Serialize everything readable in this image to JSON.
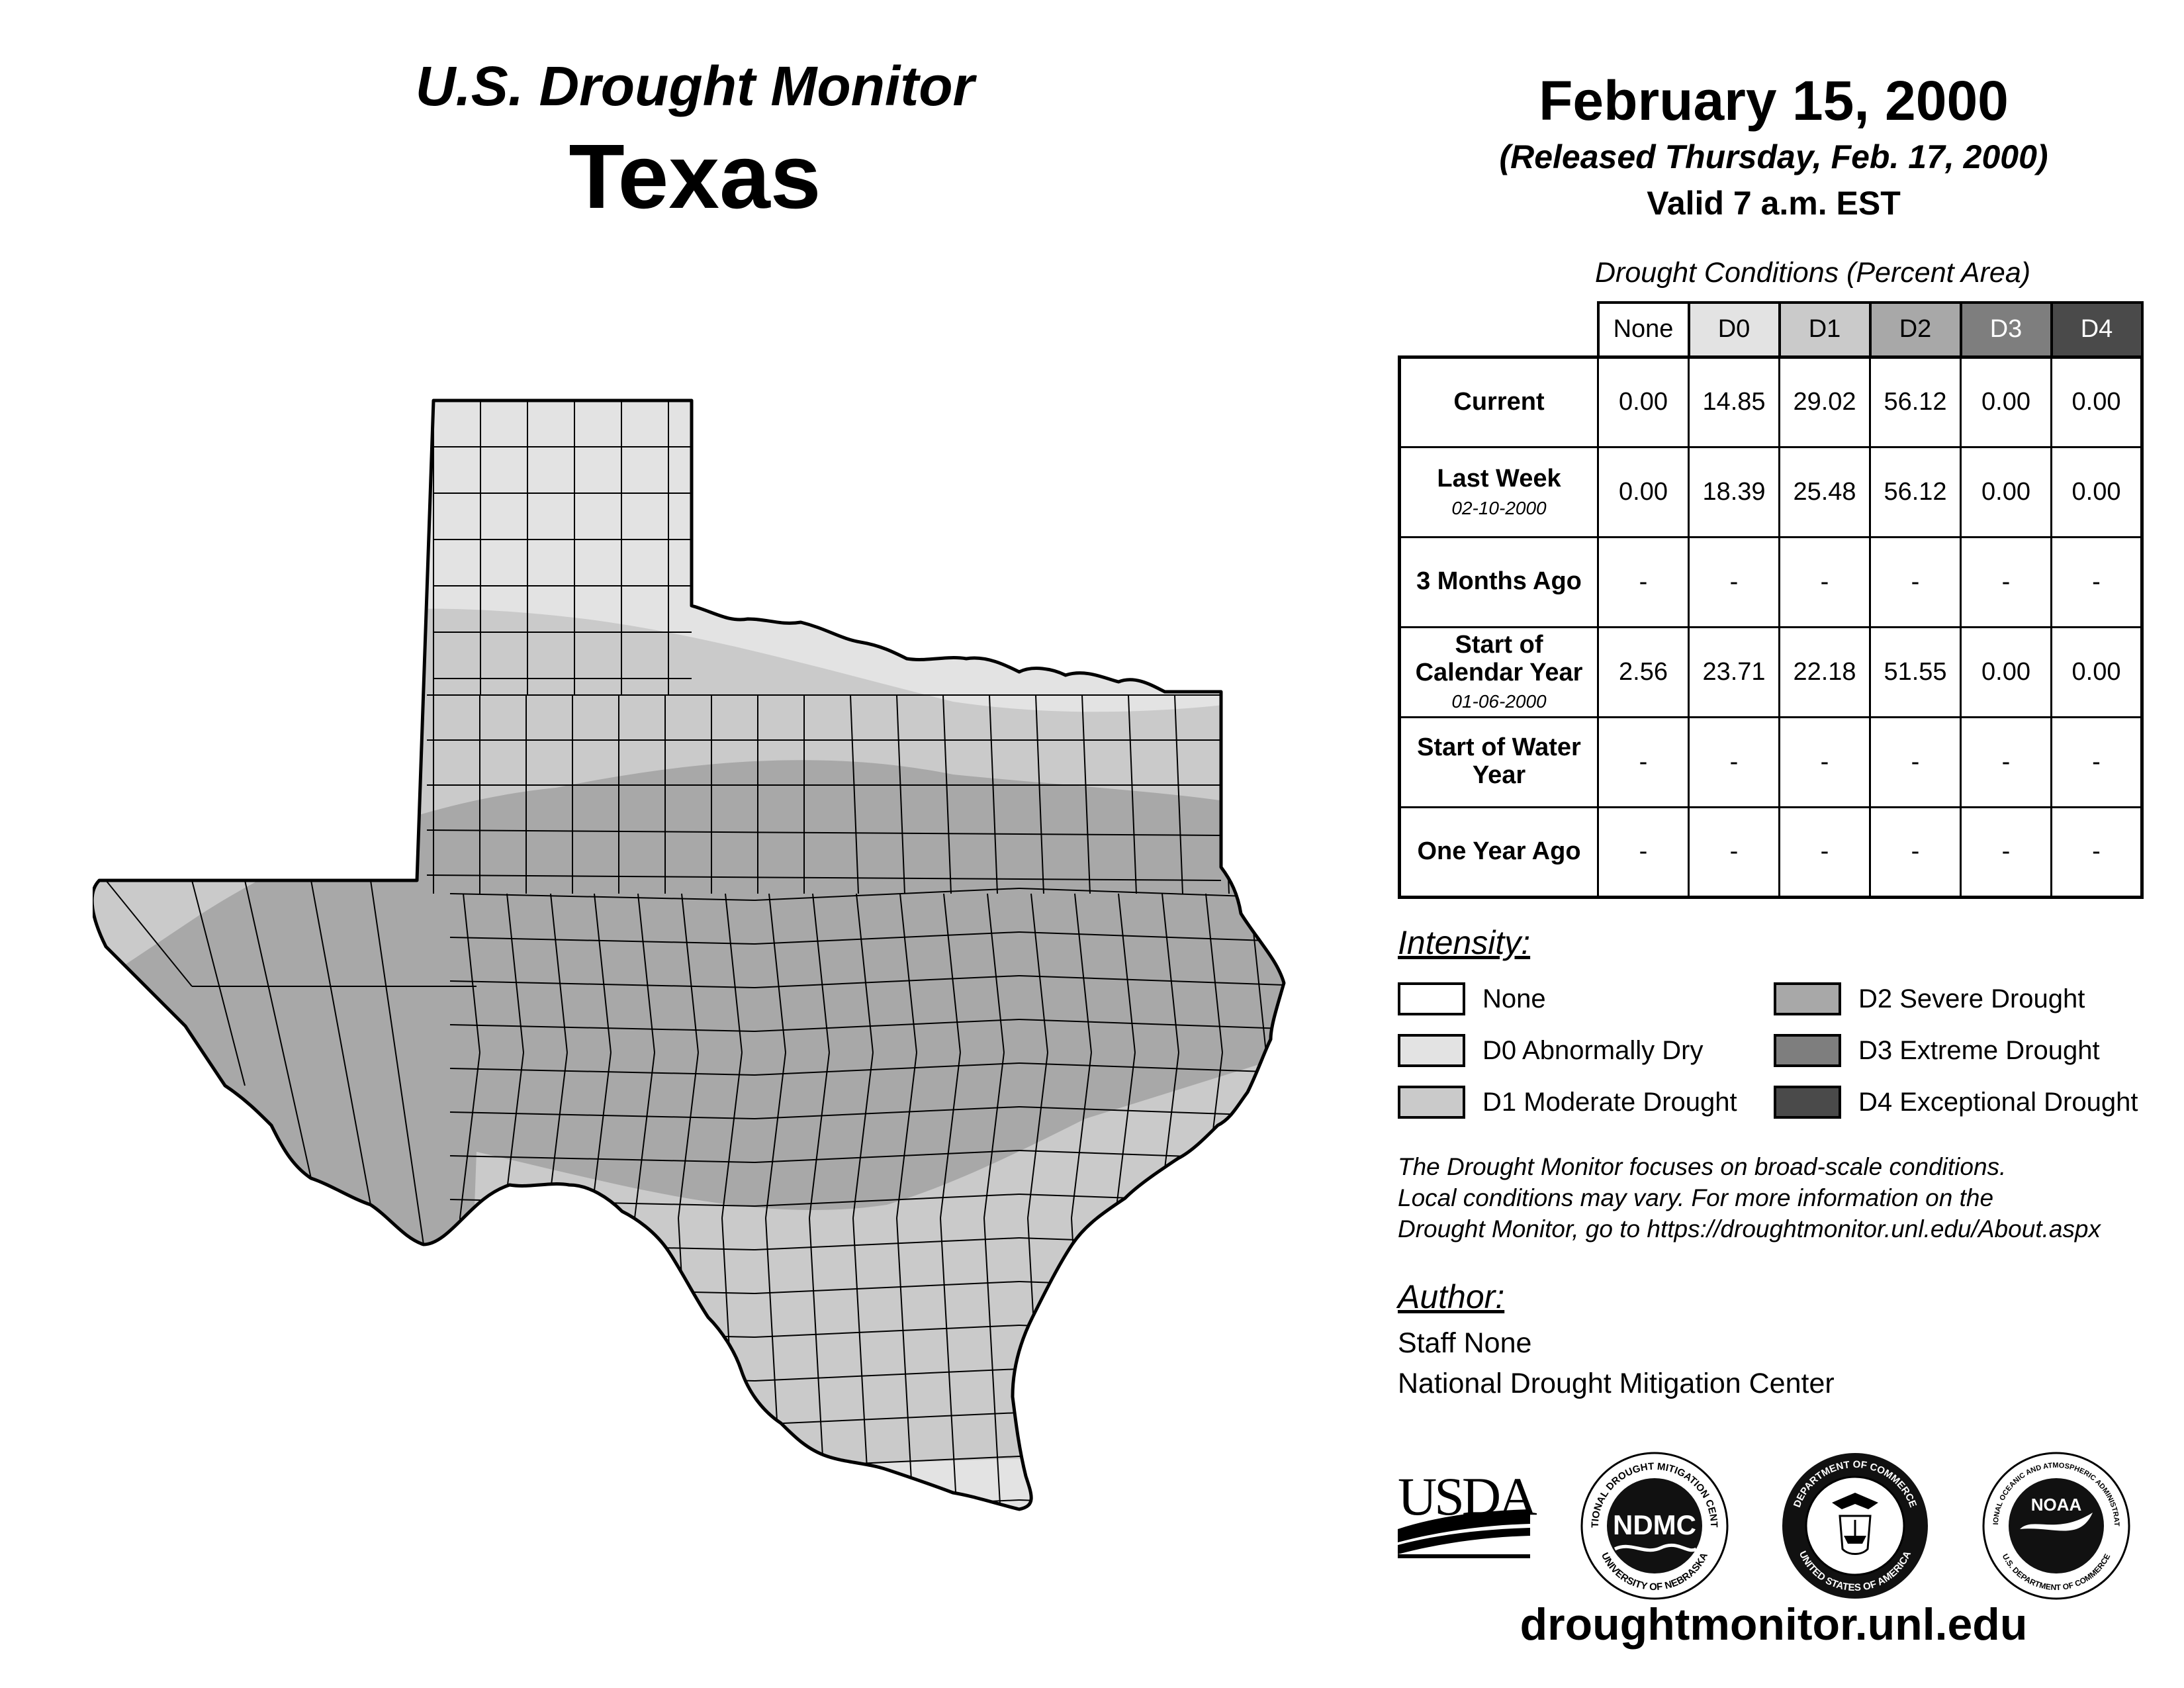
{
  "header": {
    "subtitle": "U.S. Drought Monitor",
    "state": "Texas",
    "date": "February 15, 2000",
    "released": "(Released Thursday, Feb. 17, 2000)",
    "valid": "Valid 7 a.m. EST"
  },
  "table": {
    "caption": "Drought Conditions (Percent Area)",
    "columns": [
      "None",
      "D0",
      "D1",
      "D2",
      "D3",
      "D4"
    ],
    "rows": [
      {
        "label": "Current",
        "sub": "",
        "values": [
          "0.00",
          "14.85",
          "29.02",
          "56.12",
          "0.00",
          "0.00"
        ]
      },
      {
        "label": "Last Week",
        "sub": "02-10-2000",
        "values": [
          "0.00",
          "18.39",
          "25.48",
          "56.12",
          "0.00",
          "0.00"
        ]
      },
      {
        "label": "3 Months Ago",
        "sub": "",
        "values": [
          "-",
          "-",
          "-",
          "-",
          "-",
          "-"
        ]
      },
      {
        "label": "Start of Calendar Year",
        "sub": "01-06-2000",
        "values": [
          "2.56",
          "23.71",
          "22.18",
          "51.55",
          "0.00",
          "0.00"
        ]
      },
      {
        "label": "Start of Water Year",
        "sub": "",
        "values": [
          "-",
          "-",
          "-",
          "-",
          "-",
          "-"
        ]
      },
      {
        "label": "One Year Ago",
        "sub": "",
        "values": [
          "-",
          "-",
          "-",
          "-",
          "-",
          "-"
        ]
      }
    ]
  },
  "legend": {
    "title": "Intensity:",
    "items": [
      {
        "label": "None",
        "color": "#ffffff"
      },
      {
        "label": "D0 Abnormally Dry",
        "color": "#e3e3e3"
      },
      {
        "label": "D1 Moderate Drought",
        "color": "#cacaca"
      },
      {
        "label": "D2 Severe Drought",
        "color": "#a8a8a8"
      },
      {
        "label": "D3 Extreme Drought",
        "color": "#7e7e7e"
      },
      {
        "label": "D4 Exceptional Drought",
        "color": "#4a4a4a"
      }
    ]
  },
  "note": {
    "line1": "The Drought Monitor focuses on broad-scale conditions.",
    "line2": "Local conditions may vary. For more information on the",
    "line3": "Drought Monitor, go to https://droughtmonitor.unl.edu/About.aspx"
  },
  "author": {
    "title": "Author:",
    "name": "Staff None",
    "org": "National Drought Mitigation Center"
  },
  "logos": {
    "usda": "USDA",
    "ndmc": "NDMC",
    "ndmc_ring_top": "NATIONAL DROUGHT MITIGATION CENTER",
    "ndmc_ring_bottom": "UNIVERSITY OF NEBRASKA",
    "doc_ring_top": "DEPARTMENT OF COMMERCE",
    "doc_ring_bottom": "UNITED STATES OF AMERICA",
    "noaa": "NOAA",
    "noaa_ring_top": "NATIONAL OCEANIC AND ATMOSPHERIC ADMINISTRATION",
    "noaa_ring_bottom": "U.S. DEPARTMENT OF COMMERCE"
  },
  "footer": {
    "url": "droughtmonitor.unl.edu"
  },
  "map": {
    "region": "Texas",
    "categories_shown": [
      "D0",
      "D1",
      "D2"
    ],
    "colors": {
      "d0": "#e3e3e3",
      "d1": "#cacaca",
      "d2": "#a8a8a8",
      "county_line": "#000000"
    }
  }
}
